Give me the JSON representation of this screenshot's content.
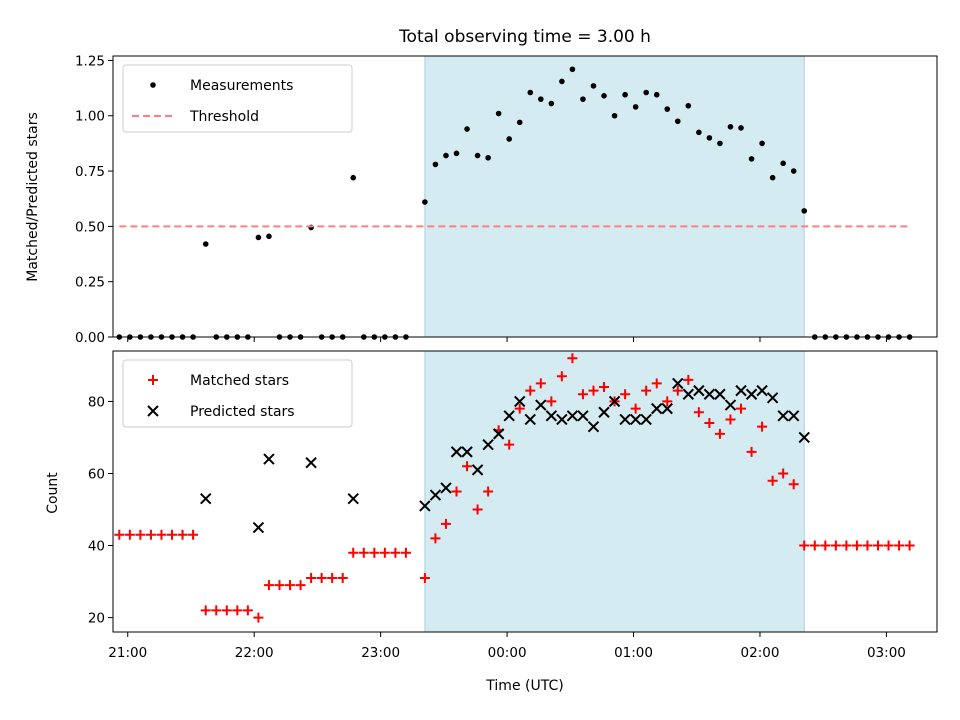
{
  "chart_data": [
    {
      "type": "scatter",
      "title": "Total observing time = 3.00 h",
      "xlabel": "",
      "ylabel": "Matched/Predicted stars",
      "x_unit": "UTC time (hours)",
      "xlim": [
        "20:53",
        "03:24"
      ],
      "ylim": [
        0,
        1.27
      ],
      "yticks": [
        "0.00",
        "0.25",
        "0.50",
        "0.75",
        "1.00",
        "1.25"
      ],
      "x_ticks_labels_shown": false,
      "observing_window": [
        "23:21",
        "02:21"
      ],
      "observing_window_color": "#d4ebf2",
      "legend": {
        "placement": "upper left",
        "entries": [
          "Measurements",
          "Threshold"
        ]
      },
      "series": [
        {
          "name": "Measurements",
          "marker": "dot",
          "color": "#000000",
          "points": [
            [
              "20:56",
              0
            ],
            [
              "21:01",
              0
            ],
            [
              "21:06",
              0
            ],
            [
              "21:11",
              0
            ],
            [
              "21:16",
              0
            ],
            [
              "21:21",
              0
            ],
            [
              "21:26",
              0
            ],
            [
              "21:31",
              0
            ],
            [
              "21:37",
              0.42
            ],
            [
              "21:42",
              0
            ],
            [
              "21:47",
              0
            ],
            [
              "21:52",
              0
            ],
            [
              "21:57",
              0
            ],
            [
              "22:02",
              0.45
            ],
            [
              "22:07",
              0.455
            ],
            [
              "22:12",
              0
            ],
            [
              "22:17",
              0
            ],
            [
              "22:22",
              0
            ],
            [
              "22:27",
              0.495
            ],
            [
              "22:32",
              0
            ],
            [
              "22:37",
              0
            ],
            [
              "22:42",
              0
            ],
            [
              "22:47",
              0.72
            ],
            [
              "22:52",
              0
            ],
            [
              "22:57",
              0
            ],
            [
              "23:02",
              0
            ],
            [
              "23:07",
              0
            ],
            [
              "23:12",
              0
            ],
            [
              "23:21",
              0.61
            ],
            [
              "23:26",
              0.78
            ],
            [
              "23:31",
              0.82
            ],
            [
              "23:36",
              0.83
            ],
            [
              "23:41",
              0.94
            ],
            [
              "23:46",
              0.82
            ],
            [
              "23:51",
              0.81
            ],
            [
              "23:56",
              1.01
            ],
            [
              "00:01",
              0.895
            ],
            [
              "00:06",
              0.97
            ],
            [
              "00:11",
              1.105
            ],
            [
              "00:16",
              1.075
            ],
            [
              "00:21",
              1.055
            ],
            [
              "00:26",
              1.155
            ],
            [
              "00:31",
              1.21
            ],
            [
              "00:36",
              1.075
            ],
            [
              "00:41",
              1.135
            ],
            [
              "00:46",
              1.09
            ],
            [
              "00:51",
              1.0
            ],
            [
              "00:56",
              1.095
            ],
            [
              "01:01",
              1.04
            ],
            [
              "01:06",
              1.105
            ],
            [
              "01:11",
              1.095
            ],
            [
              "01:16",
              1.03
            ],
            [
              "01:21",
              0.975
            ],
            [
              "01:26",
              1.045
            ],
            [
              "01:31",
              0.925
            ],
            [
              "01:36",
              0.9
            ],
            [
              "01:41",
              0.875
            ],
            [
              "01:46",
              0.95
            ],
            [
              "01:51",
              0.945
            ],
            [
              "01:56",
              0.805
            ],
            [
              "02:01",
              0.875
            ],
            [
              "02:06",
              0.72
            ],
            [
              "02:11",
              0.785
            ],
            [
              "02:16",
              0.75
            ],
            [
              "02:21",
              0.57
            ],
            [
              "02:26",
              0
            ],
            [
              "02:31",
              0
            ],
            [
              "02:36",
              0
            ],
            [
              "02:41",
              0
            ],
            [
              "02:46",
              0
            ],
            [
              "02:51",
              0
            ],
            [
              "02:56",
              0
            ],
            [
              "03:01",
              0
            ],
            [
              "03:06",
              0
            ],
            [
              "03:11",
              0
            ]
          ]
        },
        {
          "name": "Threshold",
          "style": "dashed",
          "color": "#ff7f7f",
          "points": [
            [
              "20:56",
              0.5
            ],
            [
              "03:11",
              0.5
            ]
          ]
        }
      ]
    },
    {
      "type": "scatter",
      "title": "",
      "xlabel": "Time (UTC)",
      "ylabel": "Count",
      "x_unit": "UTC time (hours)",
      "xlim": [
        "20:53",
        "03:24"
      ],
      "ylim": [
        16,
        94
      ],
      "xticks": [
        "21:00",
        "22:00",
        "23:00",
        "00:00",
        "01:00",
        "02:00",
        "03:00"
      ],
      "yticks": [
        "20",
        "40",
        "60",
        "80"
      ],
      "observing_window": [
        "23:21",
        "02:21"
      ],
      "observing_window_color": "#d4ebf2",
      "legend": {
        "placement": "upper left",
        "entries": [
          "Matched stars",
          "Predicted stars"
        ]
      },
      "series": [
        {
          "name": "Matched stars",
          "marker": "plus",
          "color": "#ff0000",
          "points": [
            [
              "20:56",
              43
            ],
            [
              "21:01",
              43
            ],
            [
              "21:06",
              43
            ],
            [
              "21:11",
              43
            ],
            [
              "21:16",
              43
            ],
            [
              "21:21",
              43
            ],
            [
              "21:26",
              43
            ],
            [
              "21:31",
              43
            ],
            [
              "21:37",
              22
            ],
            [
              "21:42",
              22
            ],
            [
              "21:47",
              22
            ],
            [
              "21:52",
              22
            ],
            [
              "21:57",
              22
            ],
            [
              "22:02",
              20
            ],
            [
              "22:07",
              29
            ],
            [
              "22:12",
              29
            ],
            [
              "22:17",
              29
            ],
            [
              "22:22",
              29
            ],
            [
              "22:27",
              31
            ],
            [
              "22:32",
              31
            ],
            [
              "22:37",
              31
            ],
            [
              "22:42",
              31
            ],
            [
              "22:47",
              38
            ],
            [
              "22:52",
              38
            ],
            [
              "22:57",
              38
            ],
            [
              "23:02",
              38
            ],
            [
              "23:07",
              38
            ],
            [
              "23:12",
              38
            ],
            [
              "23:21",
              31
            ],
            [
              "23:26",
              42
            ],
            [
              "23:31",
              46
            ],
            [
              "23:36",
              55
            ],
            [
              "23:41",
              62
            ],
            [
              "23:46",
              50
            ],
            [
              "23:51",
              55
            ],
            [
              "23:56",
              72
            ],
            [
              "00:01",
              68
            ],
            [
              "00:06",
              78
            ],
            [
              "00:11",
              83
            ],
            [
              "00:16",
              85
            ],
            [
              "00:21",
              80
            ],
            [
              "00:26",
              87
            ],
            [
              "00:31",
              92
            ],
            [
              "00:36",
              82
            ],
            [
              "00:41",
              83
            ],
            [
              "00:46",
              84
            ],
            [
              "00:51",
              80
            ],
            [
              "00:56",
              82
            ],
            [
              "01:01",
              78
            ],
            [
              "01:06",
              83
            ],
            [
              "01:11",
              85
            ],
            [
              "01:16",
              80
            ],
            [
              "01:21",
              83
            ],
            [
              "01:26",
              86
            ],
            [
              "01:31",
              77
            ],
            [
              "01:36",
              74
            ],
            [
              "01:41",
              71
            ],
            [
              "01:46",
              75
            ],
            [
              "01:51",
              78
            ],
            [
              "01:56",
              66
            ],
            [
              "02:01",
              73
            ],
            [
              "02:06",
              58
            ],
            [
              "02:11",
              60
            ],
            [
              "02:16",
              57
            ],
            [
              "02:21",
              40
            ],
            [
              "02:26",
              40
            ],
            [
              "02:31",
              40
            ],
            [
              "02:36",
              40
            ],
            [
              "02:41",
              40
            ],
            [
              "02:46",
              40
            ],
            [
              "02:51",
              40
            ],
            [
              "02:56",
              40
            ],
            [
              "03:01",
              40
            ],
            [
              "03:06",
              40
            ],
            [
              "03:11",
              40
            ]
          ]
        },
        {
          "name": "Predicted stars",
          "marker": "x",
          "color": "#000000",
          "points": [
            [
              "21:37",
              53
            ],
            [
              "22:02",
              45
            ],
            [
              "22:07",
              64
            ],
            [
              "22:27",
              63
            ],
            [
              "22:47",
              53
            ],
            [
              "23:21",
              51
            ],
            [
              "23:26",
              54
            ],
            [
              "23:31",
              56
            ],
            [
              "23:36",
              66
            ],
            [
              "23:41",
              66
            ],
            [
              "23:46",
              61
            ],
            [
              "23:51",
              68
            ],
            [
              "23:56",
              71
            ],
            [
              "00:01",
              76
            ],
            [
              "00:06",
              80
            ],
            [
              "00:11",
              75
            ],
            [
              "00:16",
              79
            ],
            [
              "00:21",
              76
            ],
            [
              "00:26",
              75
            ],
            [
              "00:31",
              76
            ],
            [
              "00:36",
              76
            ],
            [
              "00:41",
              73
            ],
            [
              "00:46",
              77
            ],
            [
              "00:51",
              80
            ],
            [
              "00:56",
              75
            ],
            [
              "01:01",
              75
            ],
            [
              "01:06",
              75
            ],
            [
              "01:11",
              78
            ],
            [
              "01:16",
              78
            ],
            [
              "01:21",
              85
            ],
            [
              "01:26",
              82
            ],
            [
              "01:31",
              83
            ],
            [
              "01:36",
              82
            ],
            [
              "01:41",
              82
            ],
            [
              "01:46",
              79
            ],
            [
              "01:51",
              83
            ],
            [
              "01:56",
              82
            ],
            [
              "02:01",
              83
            ],
            [
              "02:06",
              81
            ],
            [
              "02:11",
              76
            ],
            [
              "02:16",
              76
            ],
            [
              "02:21",
              70
            ]
          ]
        }
      ]
    }
  ]
}
